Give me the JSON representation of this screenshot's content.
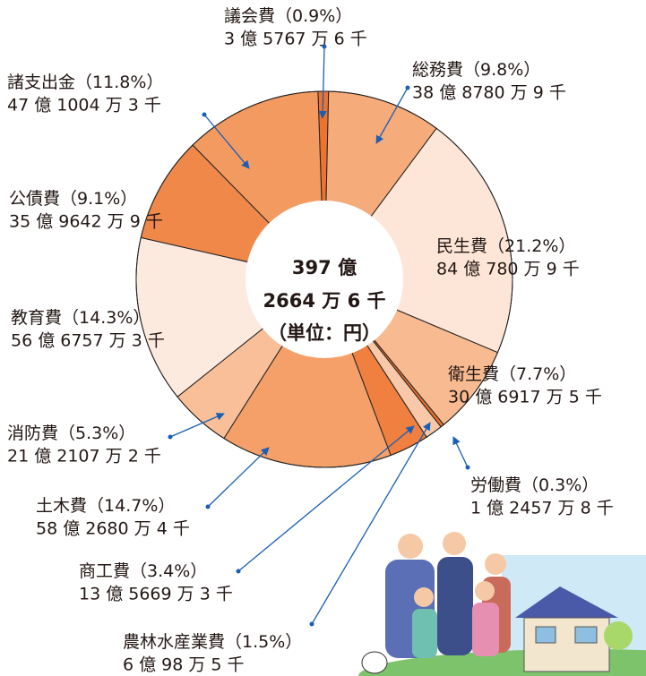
{
  "chart_data": {
    "type": "pie",
    "categories": [
      "議会費",
      "総務費",
      "民生費",
      "衛生費",
      "労働費",
      "農林水産業費",
      "商工費",
      "土木費",
      "消防費",
      "教育費",
      "公債費",
      "諸支出金"
    ],
    "values": [
      0.9,
      9.8,
      21.2,
      7.7,
      0.3,
      1.5,
      3.4,
      14.7,
      5.3,
      14.3,
      9.1,
      11.8
    ],
    "value_labels": [
      "（0.9%）",
      "（9.8%）",
      "（21.2%）",
      "（7.7%）",
      "（0.3%）",
      "（1.5%）",
      "（3.4%）",
      "（14.7%）",
      "（5.3%）",
      "（14.3%）",
      "（9.1%）",
      "（11.8%）"
    ],
    "amounts": [
      "3 億 5767 万 6 千",
      "38 億 8780 万 9 千",
      "84 億 780 万 9 千",
      "30 億 6917 万 5 千",
      "1 億 2457 万 8 千",
      "6 億 98 万 5 千",
      "13 億 5669 万 3 千",
      "58 億 2680 万 4 千",
      "21 億 2107 万 2 千",
      "56 億 6757 万 3 千",
      "35 億 9642 万 9 千",
      "47 億 1004 万 3 千"
    ],
    "colors": [
      "#ec7330",
      "#f6ab7b",
      "#fde6d7",
      "#f8ba90",
      "#e76f2c",
      "#f9c8a8",
      "#ef8040",
      "#f4a068",
      "#f8bf98",
      "#fdeadf",
      "#f0884a",
      "#f39a60"
    ],
    "center_text": [
      "397 億",
      "2664 万 6 千",
      "（単位：円）"
    ]
  }
}
